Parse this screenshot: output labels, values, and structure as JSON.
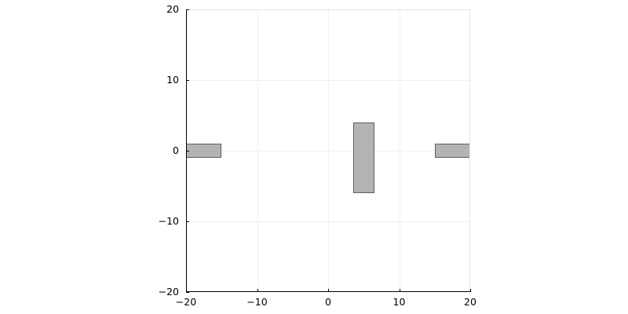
{
  "chart_data": {
    "type": "bar",
    "shape_type": "rectangle",
    "title": "",
    "xlabel": "",
    "ylabel": "",
    "xlim": [
      -20,
      20
    ],
    "ylim": [
      -20,
      20
    ],
    "x_ticks": [
      -20,
      -10,
      0,
      10,
      20
    ],
    "y_ticks": [
      -20,
      -10,
      0,
      10,
      20
    ],
    "x_tick_labels": [
      "−20",
      "−10",
      "0",
      "10",
      "20"
    ],
    "y_tick_labels": [
      "−20",
      "−10",
      "0",
      "10",
      "20"
    ],
    "grid": true,
    "legend": false,
    "shapes": [
      {
        "x0": -20.0,
        "x1": -15.0,
        "y0": -1.0,
        "y1": 1.0
      },
      {
        "x0": 3.5,
        "x1": 6.5,
        "y0": -6.0,
        "y1": 4.0
      },
      {
        "x0": 15.0,
        "x1": 20.0,
        "y0": -1.0,
        "y1": 1.0
      }
    ],
    "colors": {
      "background": "#ffffff",
      "fill": "#b3b3b3",
      "stroke": "#5e5e5e",
      "grid": "#f0f0f0",
      "frame": "#e4e4e4",
      "axis": "#000000",
      "tick_label": "#000000"
    }
  }
}
